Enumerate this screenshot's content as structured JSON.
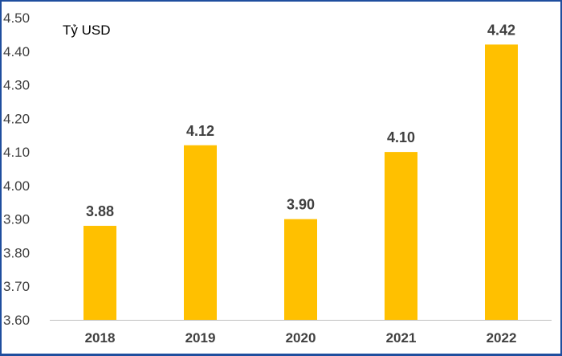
{
  "chart_data": {
    "type": "bar",
    "unit_label": "Tỷ USD",
    "categories": [
      "2018",
      "2019",
      "2020",
      "2021",
      "2022"
    ],
    "values": [
      3.88,
      4.12,
      3.9,
      4.1,
      4.42
    ],
    "data_labels": [
      "3.88",
      "4.12",
      "3.90",
      "4.10",
      "4.42"
    ],
    "y_ticks": [
      "3.60",
      "3.70",
      "3.80",
      "3.90",
      "4.00",
      "4.10",
      "4.20",
      "4.30",
      "4.40",
      "4.50"
    ],
    "ylim": [
      3.6,
      4.5
    ],
    "grid": false,
    "bar_color": "#FFC000",
    "axis_color": "#bfbfbf"
  }
}
